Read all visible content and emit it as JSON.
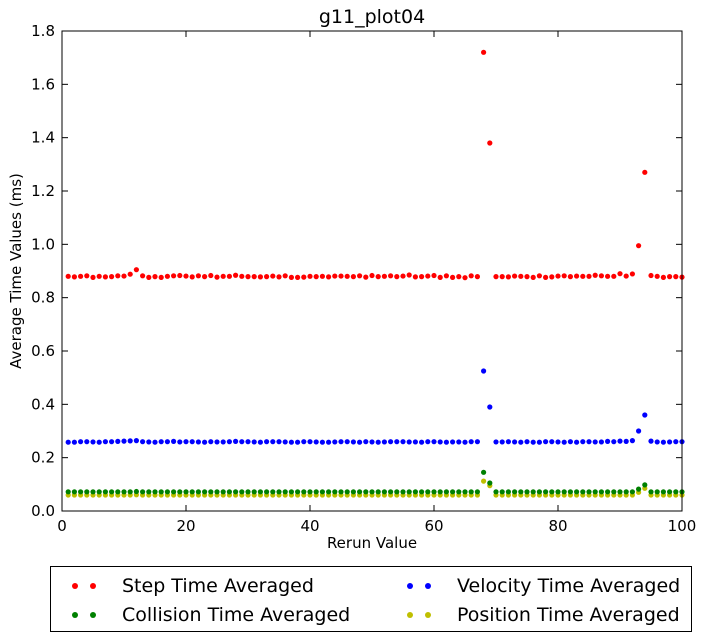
{
  "chart_data": {
    "type": "scatter",
    "title": "g11_plot04",
    "xlabel": "Rerun Value",
    "ylabel": "Average Time Values (ms)",
    "xlim": [
      0,
      100
    ],
    "ylim": [
      0.0,
      1.8
    ],
    "xticks": [
      "0",
      "20",
      "40",
      "60",
      "80",
      "100"
    ],
    "yticks": [
      "0.0",
      "0.2",
      "0.4",
      "0.6",
      "0.8",
      "1.0",
      "1.2",
      "1.4",
      "1.6",
      "1.8"
    ],
    "grid": false,
    "legend_position": "below plot, two columns",
    "x": [
      1,
      2,
      3,
      4,
      5,
      6,
      7,
      8,
      9,
      10,
      11,
      12,
      13,
      14,
      15,
      16,
      17,
      18,
      19,
      20,
      21,
      22,
      23,
      24,
      25,
      26,
      27,
      28,
      29,
      30,
      31,
      32,
      33,
      34,
      35,
      36,
      37,
      38,
      39,
      40,
      41,
      42,
      43,
      44,
      45,
      46,
      47,
      48,
      49,
      50,
      51,
      52,
      53,
      54,
      55,
      56,
      57,
      58,
      59,
      60,
      61,
      62,
      63,
      64,
      65,
      66,
      67,
      68,
      69,
      70,
      71,
      72,
      73,
      74,
      75,
      76,
      77,
      78,
      79,
      80,
      81,
      82,
      83,
      84,
      85,
      86,
      87,
      88,
      89,
      90,
      91,
      92,
      93,
      94,
      95,
      96,
      97,
      98,
      99,
      100
    ],
    "series": [
      {
        "name": "Step Time Averaged",
        "color": "#ff0000",
        "values": [
          0.88,
          0.878,
          0.88,
          0.882,
          0.876,
          0.88,
          0.878,
          0.879,
          0.882,
          0.881,
          0.888,
          0.905,
          0.882,
          0.876,
          0.879,
          0.876,
          0.88,
          0.882,
          0.883,
          0.881,
          0.878,
          0.882,
          0.879,
          0.883,
          0.877,
          0.88,
          0.88,
          0.884,
          0.88,
          0.879,
          0.879,
          0.878,
          0.879,
          0.881,
          0.878,
          0.882,
          0.876,
          0.876,
          0.877,
          0.88,
          0.879,
          0.88,
          0.878,
          0.881,
          0.881,
          0.88,
          0.879,
          0.882,
          0.877,
          0.883,
          0.879,
          0.88,
          0.882,
          0.879,
          0.881,
          0.885,
          0.878,
          0.879,
          0.881,
          0.883,
          0.876,
          0.882,
          0.876,
          0.879,
          0.875,
          0.882,
          0.879,
          1.72,
          1.38,
          0.879,
          0.879,
          0.878,
          0.881,
          0.88,
          0.879,
          0.876,
          0.882,
          0.876,
          0.878,
          0.881,
          0.882,
          0.879,
          0.881,
          0.88,
          0.88,
          0.884,
          0.882,
          0.88,
          0.88,
          0.89,
          0.881,
          0.889,
          0.995,
          1.27,
          0.883,
          0.88,
          0.876,
          0.879,
          0.879,
          0.877
        ]
      },
      {
        "name": "Velocity Time Averaged",
        "color": "#0000ff",
        "values": [
          0.258,
          0.258,
          0.26,
          0.26,
          0.259,
          0.258,
          0.26,
          0.26,
          0.261,
          0.262,
          0.263,
          0.264,
          0.26,
          0.259,
          0.258,
          0.26,
          0.26,
          0.261,
          0.259,
          0.26,
          0.26,
          0.259,
          0.258,
          0.26,
          0.259,
          0.259,
          0.26,
          0.261,
          0.26,
          0.26,
          0.259,
          0.258,
          0.26,
          0.26,
          0.26,
          0.259,
          0.258,
          0.258,
          0.26,
          0.26,
          0.259,
          0.258,
          0.258,
          0.259,
          0.26,
          0.26,
          0.259,
          0.258,
          0.26,
          0.259,
          0.258,
          0.259,
          0.26,
          0.26,
          0.26,
          0.259,
          0.259,
          0.258,
          0.26,
          0.26,
          0.259,
          0.258,
          0.259,
          0.259,
          0.258,
          0.26,
          0.26,
          0.525,
          0.39,
          0.259,
          0.259,
          0.26,
          0.259,
          0.258,
          0.26,
          0.258,
          0.258,
          0.26,
          0.26,
          0.259,
          0.258,
          0.26,
          0.258,
          0.26,
          0.26,
          0.259,
          0.259,
          0.261,
          0.26,
          0.262,
          0.261,
          0.264,
          0.3,
          0.36,
          0.262,
          0.259,
          0.258,
          0.259,
          0.26,
          0.26
        ]
      },
      {
        "name": "Collision Time Averaged",
        "color": "#008000",
        "values": [
          0.072,
          0.072,
          0.072,
          0.072,
          0.072,
          0.072,
          0.072,
          0.072,
          0.072,
          0.072,
          0.072,
          0.073,
          0.072,
          0.072,
          0.072,
          0.072,
          0.072,
          0.072,
          0.072,
          0.072,
          0.072,
          0.072,
          0.072,
          0.072,
          0.072,
          0.072,
          0.072,
          0.072,
          0.072,
          0.072,
          0.072,
          0.072,
          0.072,
          0.072,
          0.072,
          0.072,
          0.072,
          0.072,
          0.072,
          0.072,
          0.072,
          0.072,
          0.072,
          0.072,
          0.072,
          0.072,
          0.072,
          0.072,
          0.072,
          0.072,
          0.072,
          0.072,
          0.072,
          0.072,
          0.072,
          0.072,
          0.072,
          0.072,
          0.072,
          0.072,
          0.072,
          0.072,
          0.072,
          0.072,
          0.072,
          0.072,
          0.072,
          0.145,
          0.105,
          0.072,
          0.072,
          0.072,
          0.072,
          0.072,
          0.072,
          0.072,
          0.072,
          0.072,
          0.072,
          0.072,
          0.072,
          0.072,
          0.072,
          0.072,
          0.072,
          0.072,
          0.072,
          0.072,
          0.072,
          0.072,
          0.072,
          0.072,
          0.082,
          0.098,
          0.072,
          0.072,
          0.072,
          0.072,
          0.072,
          0.072
        ]
      },
      {
        "name": "Position Time Averaged",
        "color": "#bfbf00",
        "values": [
          0.06,
          0.06,
          0.06,
          0.06,
          0.06,
          0.06,
          0.06,
          0.06,
          0.06,
          0.06,
          0.06,
          0.061,
          0.06,
          0.06,
          0.06,
          0.06,
          0.06,
          0.06,
          0.06,
          0.06,
          0.06,
          0.06,
          0.06,
          0.06,
          0.06,
          0.06,
          0.06,
          0.06,
          0.06,
          0.06,
          0.06,
          0.06,
          0.06,
          0.06,
          0.06,
          0.06,
          0.06,
          0.06,
          0.06,
          0.06,
          0.06,
          0.06,
          0.06,
          0.06,
          0.06,
          0.06,
          0.06,
          0.06,
          0.06,
          0.06,
          0.06,
          0.06,
          0.06,
          0.06,
          0.06,
          0.06,
          0.06,
          0.06,
          0.06,
          0.06,
          0.06,
          0.06,
          0.06,
          0.06,
          0.06,
          0.06,
          0.06,
          0.112,
          0.095,
          0.06,
          0.06,
          0.06,
          0.06,
          0.06,
          0.06,
          0.06,
          0.06,
          0.06,
          0.06,
          0.06,
          0.06,
          0.06,
          0.06,
          0.06,
          0.06,
          0.06,
          0.06,
          0.06,
          0.06,
          0.06,
          0.06,
          0.06,
          0.07,
          0.085,
          0.06,
          0.06,
          0.06,
          0.06,
          0.06,
          0.06
        ]
      }
    ]
  },
  "legend": {
    "items": [
      {
        "label": "Step Time Averaged",
        "color": "#ff0000"
      },
      {
        "label": "Velocity Time Averaged",
        "color": "#0000ff"
      },
      {
        "label": "Collision Time Averaged",
        "color": "#008000"
      },
      {
        "label": "Position Time Averaged",
        "color": "#bfbf00"
      }
    ]
  }
}
